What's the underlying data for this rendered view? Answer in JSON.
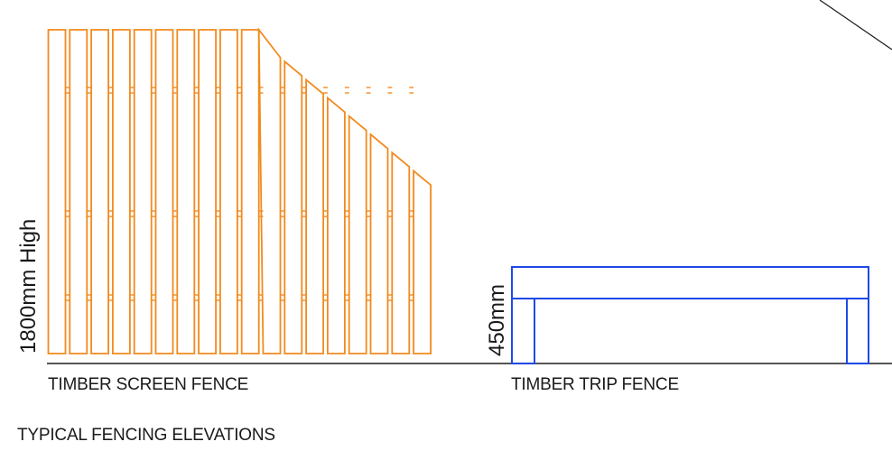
{
  "labels": {
    "screen_fence": "TIMBER SCREEN FENCE",
    "trip_fence": "TIMBER TRIP FENCE",
    "sheet_title": "TYPICAL FENCING ELEVATIONS",
    "screen_height": "1800mm High",
    "trip_height": "450mm"
  },
  "colors": {
    "screen_fence": "#f28a1e",
    "trip_fence": "#1f49e6",
    "ground": "#555555",
    "linework": "#1a1a1a"
  },
  "screen_fence": {
    "full_height_boards": 10,
    "stepped_boards": 8
  }
}
